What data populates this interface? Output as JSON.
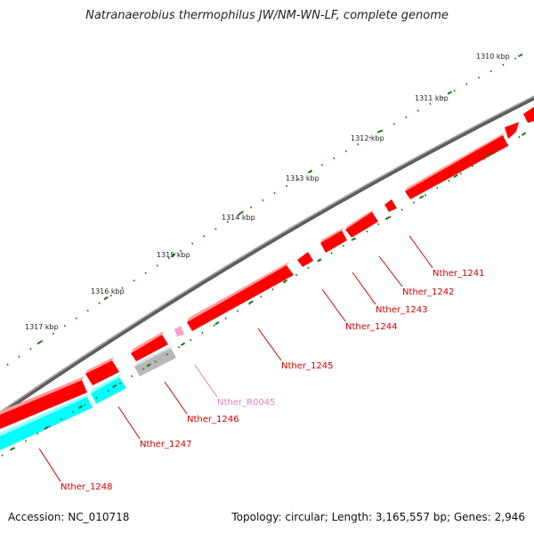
{
  "title": "Natranaerobius thermophilus JW/NM-WN-LF, complete genome",
  "footer": {
    "accession": "Accession: NC_010718",
    "info": "Topology: circular; Length: 3,165,557 bp; Genes: 2,946"
  },
  "colors": {
    "backbone": "#888888",
    "cds": "#ff0000",
    "cds_reverse": "#00ffff",
    "rna": "#f4a0cc",
    "pseudo": "#b8b8b8",
    "tick_major": "#1a7a1a",
    "tick_minor": "#1a7a1a",
    "label": "#cc0000",
    "rna_label": "#e080b8"
  },
  "ticks": {
    "labels": [
      "1310 kbp",
      "1311 kbp",
      "1312 kbp",
      "1313 kbp",
      "1314 kbp",
      "1315 kbp",
      "1316 kbp",
      "1317 kbp"
    ]
  },
  "genes": [
    {
      "label": "Nther_1241",
      "type": "cds"
    },
    {
      "label": "Nther_1242",
      "type": "cds"
    },
    {
      "label": "Nther_1243",
      "type": "cds"
    },
    {
      "label": "Nther_1244",
      "type": "cds"
    },
    {
      "label": "Nther_1245",
      "type": "cds"
    },
    {
      "label": "Nther_R0045",
      "type": "rna"
    },
    {
      "label": "Nther_1246",
      "type": "pseudo"
    },
    {
      "label": "Nther_1247",
      "type": "cds"
    },
    {
      "label": "Nther_1248",
      "type": "cds_reverse"
    }
  ]
}
